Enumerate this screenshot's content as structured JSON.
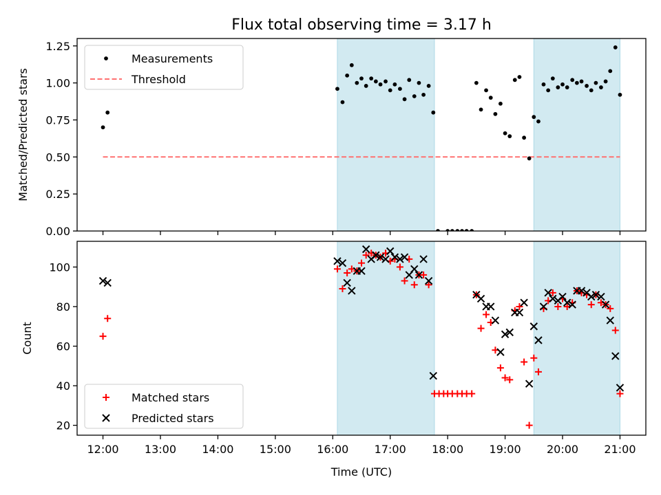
{
  "title": "Flux total observing time = 3.17 h",
  "colors": {
    "measurement": "#000000",
    "threshold": "#ff7070",
    "matched": "#ff0000",
    "predicted": "#000000",
    "span": "#add8e6"
  },
  "chart_data": [
    {
      "type": "scatter",
      "panel": "top",
      "ylabel": "Matched/Predicted stars",
      "xlim": [
        11.55,
        21.45
      ],
      "ylim": [
        0.0,
        1.3
      ],
      "yticks": [
        0.0,
        0.25,
        0.5,
        0.75,
        1.0,
        1.25
      ],
      "ytick_labels": [
        "0.00",
        "0.25",
        "0.50",
        "0.75",
        "1.00",
        "1.25"
      ],
      "legend": {
        "position": "top-left",
        "entries": [
          "Measurements",
          "Threshold"
        ]
      },
      "threshold": {
        "name": "Threshold",
        "y": 0.5,
        "x_range": [
          12.0,
          21.0
        ]
      },
      "shaded_spans": [
        [
          16.08,
          17.77
        ],
        [
          19.5,
          21.0
        ]
      ],
      "series": [
        {
          "name": "Measurements",
          "points": [
            [
              12.0,
              0.7
            ],
            [
              12.08,
              0.8
            ],
            [
              16.08,
              0.96
            ],
            [
              16.17,
              0.87
            ],
            [
              16.25,
              1.05
            ],
            [
              16.33,
              1.12
            ],
            [
              16.42,
              1.0
            ],
            [
              16.5,
              1.03
            ],
            [
              16.58,
              0.98
            ],
            [
              16.67,
              1.03
            ],
            [
              16.75,
              1.01
            ],
            [
              16.83,
              0.99
            ],
            [
              16.92,
              1.01
            ],
            [
              17.0,
              0.95
            ],
            [
              17.08,
              0.99
            ],
            [
              17.17,
              0.96
            ],
            [
              17.25,
              0.89
            ],
            [
              17.33,
              1.02
            ],
            [
              17.42,
              0.91
            ],
            [
              17.5,
              1.0
            ],
            [
              17.58,
              0.92
            ],
            [
              17.67,
              0.98
            ],
            [
              17.75,
              0.8
            ],
            [
              17.83,
              0.0
            ],
            [
              18.0,
              0.0
            ],
            [
              18.08,
              0.0
            ],
            [
              18.17,
              0.0
            ],
            [
              18.25,
              0.0
            ],
            [
              18.33,
              0.0
            ],
            [
              18.42,
              0.0
            ],
            [
              18.5,
              1.0
            ],
            [
              18.58,
              0.82
            ],
            [
              18.67,
              0.95
            ],
            [
              18.75,
              0.9
            ],
            [
              18.83,
              0.79
            ],
            [
              18.92,
              0.86
            ],
            [
              19.0,
              0.66
            ],
            [
              19.08,
              0.64
            ],
            [
              19.17,
              1.02
            ],
            [
              19.25,
              1.04
            ],
            [
              19.33,
              0.63
            ],
            [
              19.42,
              0.49
            ],
            [
              19.5,
              0.77
            ],
            [
              19.58,
              0.74
            ],
            [
              19.67,
              0.99
            ],
            [
              19.75,
              0.95
            ],
            [
              19.83,
              1.03
            ],
            [
              19.92,
              0.97
            ],
            [
              20.0,
              0.99
            ],
            [
              20.08,
              0.97
            ],
            [
              20.17,
              1.02
            ],
            [
              20.25,
              1.0
            ],
            [
              20.33,
              1.01
            ],
            [
              20.42,
              0.98
            ],
            [
              20.5,
              0.95
            ],
            [
              20.58,
              1.0
            ],
            [
              20.67,
              0.97
            ],
            [
              20.75,
              1.01
            ],
            [
              20.83,
              1.08
            ],
            [
              20.92,
              1.24
            ],
            [
              21.0,
              0.92
            ]
          ]
        }
      ]
    },
    {
      "type": "scatter",
      "panel": "bottom",
      "xlabel": "Time (UTC)",
      "ylabel": "Count",
      "xlim": [
        11.55,
        21.45
      ],
      "ylim": [
        15.0,
        113.0
      ],
      "xticks": [
        12,
        13,
        14,
        15,
        16,
        17,
        18,
        19,
        20,
        21
      ],
      "xtick_labels": [
        "12:00",
        "13:00",
        "14:00",
        "15:00",
        "16:00",
        "17:00",
        "18:00",
        "19:00",
        "20:00",
        "21:00"
      ],
      "yticks": [
        20,
        40,
        60,
        80,
        100
      ],
      "ytick_labels": [
        "20",
        "40",
        "60",
        "80",
        "100"
      ],
      "legend": {
        "position": "bottom-left",
        "entries": [
          "Matched stars",
          "Predicted stars"
        ]
      },
      "shaded_spans": [
        [
          16.08,
          17.77
        ],
        [
          19.5,
          21.0
        ]
      ],
      "series": [
        {
          "name": "Matched stars",
          "marker": "plus",
          "points": [
            [
              12.0,
              65
            ],
            [
              12.08,
              74
            ],
            [
              16.08,
              99
            ],
            [
              16.17,
              89
            ],
            [
              16.25,
              97
            ],
            [
              16.33,
              99
            ],
            [
              16.42,
              98
            ],
            [
              16.5,
              102
            ],
            [
              16.58,
              106
            ],
            [
              16.67,
              107
            ],
            [
              16.75,
              106
            ],
            [
              16.83,
              105
            ],
            [
              16.92,
              107
            ],
            [
              17.0,
              103
            ],
            [
              17.08,
              104
            ],
            [
              17.17,
              100
            ],
            [
              17.25,
              93
            ],
            [
              17.33,
              104
            ],
            [
              17.42,
              91
            ],
            [
              17.5,
              96
            ],
            [
              17.58,
              96
            ],
            [
              17.67,
              91
            ],
            [
              17.77,
              36
            ],
            [
              17.85,
              36
            ],
            [
              17.93,
              36
            ],
            [
              18.0,
              36
            ],
            [
              18.08,
              36
            ],
            [
              18.17,
              36
            ],
            [
              18.25,
              36
            ],
            [
              18.33,
              36
            ],
            [
              18.42,
              36
            ],
            [
              18.5,
              86
            ],
            [
              18.58,
              69
            ],
            [
              18.67,
              76
            ],
            [
              18.75,
              72
            ],
            [
              18.83,
              58
            ],
            [
              18.92,
              49
            ],
            [
              19.0,
              44
            ],
            [
              19.08,
              43
            ],
            [
              19.17,
              78
            ],
            [
              19.25,
              80
            ],
            [
              19.33,
              52
            ],
            [
              19.42,
              20
            ],
            [
              19.5,
              54
            ],
            [
              19.58,
              47
            ],
            [
              19.67,
              79
            ],
            [
              19.75,
              83
            ],
            [
              19.83,
              87
            ],
            [
              19.92,
              80
            ],
            [
              20.0,
              84
            ],
            [
              20.08,
              80
            ],
            [
              20.17,
              82
            ],
            [
              20.25,
              88
            ],
            [
              20.33,
              87
            ],
            [
              20.42,
              86
            ],
            [
              20.5,
              81
            ],
            [
              20.58,
              86
            ],
            [
              20.67,
              82
            ],
            [
              20.75,
              81
            ],
            [
              20.83,
              79
            ],
            [
              20.92,
              68
            ],
            [
              21.0,
              36
            ]
          ]
        },
        {
          "name": "Predicted stars",
          "marker": "x",
          "points": [
            [
              12.0,
              93
            ],
            [
              12.08,
              92
            ],
            [
              16.08,
              103
            ],
            [
              16.17,
              102
            ],
            [
              16.25,
              92
            ],
            [
              16.33,
              88
            ],
            [
              16.42,
              98
            ],
            [
              16.5,
              98
            ],
            [
              16.58,
              109
            ],
            [
              16.67,
              104
            ],
            [
              16.75,
              106
            ],
            [
              16.83,
              105
            ],
            [
              16.92,
              104
            ],
            [
              17.0,
              108
            ],
            [
              17.08,
              105
            ],
            [
              17.17,
              104
            ],
            [
              17.25,
              105
            ],
            [
              17.33,
              96
            ],
            [
              17.42,
              99
            ],
            [
              17.5,
              96
            ],
            [
              17.58,
              104
            ],
            [
              17.67,
              93
            ],
            [
              17.75,
              45
            ],
            [
              18.5,
              86
            ],
            [
              18.58,
              84
            ],
            [
              18.67,
              80
            ],
            [
              18.75,
              80
            ],
            [
              18.83,
              73
            ],
            [
              18.92,
              57
            ],
            [
              19.0,
              66
            ],
            [
              19.08,
              67
            ],
            [
              19.17,
              77
            ],
            [
              19.25,
              77
            ],
            [
              19.33,
              82
            ],
            [
              19.42,
              41
            ],
            [
              19.5,
              70
            ],
            [
              19.58,
              63
            ],
            [
              19.67,
              80
            ],
            [
              19.75,
              87
            ],
            [
              19.83,
              84
            ],
            [
              19.92,
              83
            ],
            [
              20.0,
              85
            ],
            [
              20.08,
              82
            ],
            [
              20.17,
              81
            ],
            [
              20.25,
              88
            ],
            [
              20.33,
              88
            ],
            [
              20.42,
              87
            ],
            [
              20.5,
              85
            ],
            [
              20.58,
              86
            ],
            [
              20.67,
              85
            ],
            [
              20.75,
              81
            ],
            [
              20.83,
              73
            ],
            [
              20.92,
              55
            ],
            [
              21.0,
              39
            ]
          ]
        }
      ]
    }
  ]
}
